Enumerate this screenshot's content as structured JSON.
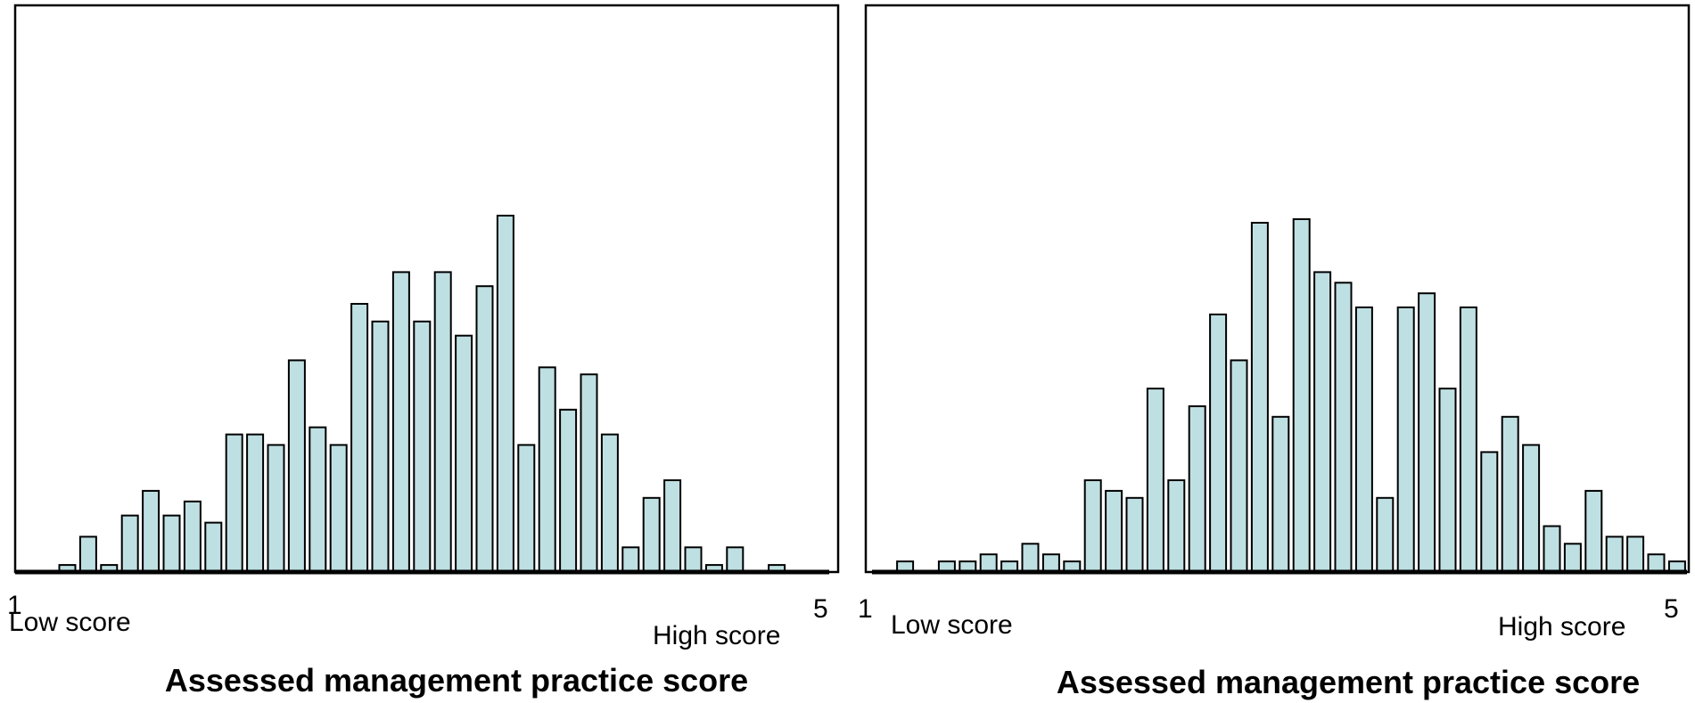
{
  "charts": [
    {
      "id": "left",
      "chart_data": {
        "type": "bar",
        "title": "",
        "xlabel": "Assessed management practice score",
        "ylabel": "",
        "x_ticks": [
          "1",
          "5"
        ],
        "end_labels": {
          "low": "Low score",
          "high": "High score"
        },
        "xlim": [
          1,
          5
        ],
        "ylim": [
          0,
          100
        ],
        "grid": false,
        "legend": "none",
        "series": [
          {
            "values": [
              0,
              0,
              2,
              10,
              2,
              16,
              23,
              16,
              20,
              14,
              39,
              39,
              36,
              60,
              41,
              36,
              76,
              71,
              85,
              71,
              85,
              67,
              81,
              101,
              36,
              58,
              46,
              56,
              39,
              7,
              21,
              26,
              7,
              2,
              7,
              0,
              2,
              0
            ]
          }
        ]
      }
    },
    {
      "id": "right",
      "chart_data": {
        "type": "bar",
        "title": "",
        "xlabel": "Assessed management practice score",
        "ylabel": "",
        "x_ticks": [
          "1",
          "5"
        ],
        "end_labels": {
          "low": "Low score",
          "high": "High score"
        },
        "xlim": [
          1,
          5
        ],
        "ylim": [
          0,
          100
        ],
        "grid": false,
        "legend": "none",
        "series": [
          {
            "values": [
              0,
              3,
              0,
              3,
              3,
              5,
              3,
              8,
              5,
              3,
              26,
              23,
              21,
              52,
              26,
              47,
              73,
              60,
              99,
              44,
              100,
              85,
              82,
              75,
              21,
              75,
              79,
              52,
              75,
              34,
              44,
              36,
              13,
              8,
              23,
              10,
              10,
              5,
              3
            ]
          }
        ]
      }
    }
  ],
  "style": {
    "bar_fill": "#bfe0e3",
    "bar_stroke": "#000000"
  }
}
